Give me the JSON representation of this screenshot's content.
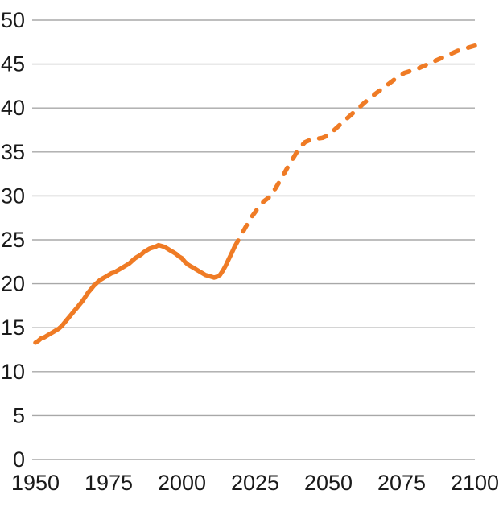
{
  "chart_data": {
    "type": "line",
    "x_axis": {
      "ticks": [
        1950,
        1975,
        2000,
        2025,
        2050,
        2075,
        2100
      ],
      "range": [
        1950,
        2100
      ]
    },
    "y_axis": {
      "ticks": [
        0,
        5,
        10,
        15,
        20,
        25,
        30,
        35,
        40,
        45,
        50
      ],
      "range": [
        0,
        50
      ]
    },
    "grid": "horizontal-only",
    "legend_position": "none",
    "colors": {
      "line": "#EF7B25",
      "gridline": "#A8A8A8",
      "tick_label": "#1A1A1A",
      "background": "#FFFFFF"
    },
    "series": [
      {
        "name": "solid-segment",
        "style": "solid",
        "points": [
          [
            1950,
            13.3
          ],
          [
            1951,
            13.5
          ],
          [
            1952,
            13.8
          ],
          [
            1953,
            13.9
          ],
          [
            1954,
            14.1
          ],
          [
            1955,
            14.3
          ],
          [
            1956,
            14.5
          ],
          [
            1957,
            14.7
          ],
          [
            1958,
            14.9
          ],
          [
            1959,
            15.2
          ],
          [
            1960,
            15.6
          ],
          [
            1961,
            16.0
          ],
          [
            1962,
            16.4
          ],
          [
            1963,
            16.8
          ],
          [
            1964,
            17.2
          ],
          [
            1965,
            17.6
          ],
          [
            1966,
            18.0
          ],
          [
            1967,
            18.5
          ],
          [
            1968,
            19.0
          ],
          [
            1969,
            19.4
          ],
          [
            1970,
            19.8
          ],
          [
            1971,
            20.1
          ],
          [
            1972,
            20.4
          ],
          [
            1973,
            20.6
          ],
          [
            1974,
            20.8
          ],
          [
            1975,
            21.0
          ],
          [
            1976,
            21.2
          ],
          [
            1977,
            21.3
          ],
          [
            1978,
            21.5
          ],
          [
            1979,
            21.7
          ],
          [
            1980,
            21.9
          ],
          [
            1981,
            22.1
          ],
          [
            1982,
            22.3
          ],
          [
            1983,
            22.6
          ],
          [
            1984,
            22.9
          ],
          [
            1985,
            23.1
          ],
          [
            1986,
            23.3
          ],
          [
            1987,
            23.6
          ],
          [
            1988,
            23.8
          ],
          [
            1989,
            24.0
          ],
          [
            1990,
            24.1
          ],
          [
            1991,
            24.2
          ],
          [
            1992,
            24.4
          ],
          [
            1993,
            24.3
          ],
          [
            1994,
            24.2
          ],
          [
            1995,
            24.0
          ],
          [
            1996,
            23.8
          ],
          [
            1997,
            23.6
          ],
          [
            1998,
            23.4
          ],
          [
            1999,
            23.1
          ],
          [
            2000,
            22.9
          ],
          [
            2001,
            22.5
          ],
          [
            2002,
            22.2
          ],
          [
            2003,
            22.0
          ],
          [
            2004,
            21.8
          ],
          [
            2005,
            21.6
          ],
          [
            2006,
            21.4
          ],
          [
            2007,
            21.2
          ],
          [
            2008,
            21.0
          ],
          [
            2009,
            20.9
          ],
          [
            2010,
            20.8
          ],
          [
            2011,
            20.7
          ],
          [
            2012,
            20.8
          ],
          [
            2013,
            21.0
          ],
          [
            2014,
            21.5
          ],
          [
            2015,
            22.1
          ],
          [
            2016,
            22.8
          ],
          [
            2017,
            23.5
          ],
          [
            2018,
            24.2
          ]
        ]
      },
      {
        "name": "dashed-segment",
        "style": "dashed",
        "points": [
          [
            2018,
            24.2
          ],
          [
            2020,
            25.4
          ],
          [
            2022,
            26.6
          ],
          [
            2024,
            27.7
          ],
          [
            2026,
            28.6
          ],
          [
            2028,
            29.4
          ],
          [
            2030,
            29.9
          ],
          [
            2032,
            30.9
          ],
          [
            2034,
            32.0
          ],
          [
            2036,
            33.2
          ],
          [
            2038,
            34.3
          ],
          [
            2040,
            35.4
          ],
          [
            2042,
            36.1
          ],
          [
            2044,
            36.4
          ],
          [
            2046,
            36.5
          ],
          [
            2048,
            36.6
          ],
          [
            2050,
            36.9
          ],
          [
            2052,
            37.5
          ],
          [
            2054,
            38.1
          ],
          [
            2056,
            38.7
          ],
          [
            2058,
            39.3
          ],
          [
            2060,
            39.9
          ],
          [
            2062,
            40.5
          ],
          [
            2064,
            41.1
          ],
          [
            2066,
            41.6
          ],
          [
            2068,
            42.1
          ],
          [
            2070,
            42.6
          ],
          [
            2072,
            43.1
          ],
          [
            2074,
            43.6
          ],
          [
            2076,
            44.0
          ],
          [
            2078,
            44.2
          ],
          [
            2080,
            44.4
          ],
          [
            2082,
            44.7
          ],
          [
            2084,
            45.0
          ],
          [
            2086,
            45.3
          ],
          [
            2088,
            45.6
          ],
          [
            2090,
            45.9
          ],
          [
            2092,
            46.2
          ],
          [
            2094,
            46.5
          ],
          [
            2096,
            46.7
          ],
          [
            2098,
            46.9
          ],
          [
            2100,
            47.1
          ]
        ]
      }
    ]
  }
}
